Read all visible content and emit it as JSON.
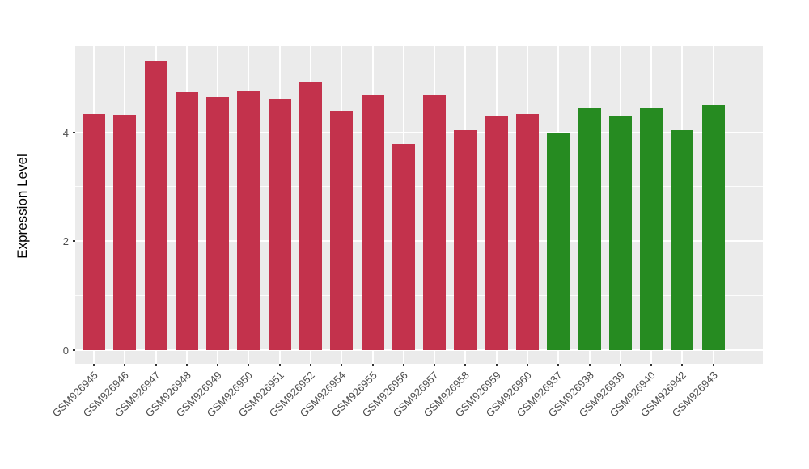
{
  "chart_data": {
    "type": "bar",
    "title": "",
    "xlabel": "",
    "ylabel": "Expression Level",
    "categories": [
      "GSM926945",
      "GSM926946",
      "GSM926947",
      "GSM926948",
      "GSM926949",
      "GSM926950",
      "GSM926951",
      "GSM926952",
      "GSM926954",
      "GSM926955",
      "GSM926956",
      "GSM926957",
      "GSM926958",
      "GSM926959",
      "GSM926960",
      "GSM926937",
      "GSM926938",
      "GSM926939",
      "GSM926940",
      "GSM926942",
      "GSM926943"
    ],
    "values": [
      4.33,
      4.32,
      5.32,
      4.74,
      4.64,
      4.75,
      4.61,
      4.91,
      4.4,
      4.67,
      3.79,
      4.67,
      4.03,
      4.3,
      4.34,
      4.0,
      4.44,
      4.31,
      4.44,
      4.03,
      4.5
    ],
    "bar_groups": [
      "red",
      "red",
      "red",
      "red",
      "red",
      "red",
      "red",
      "red",
      "red",
      "red",
      "red",
      "red",
      "red",
      "red",
      "red",
      "green",
      "green",
      "green",
      "green",
      "green",
      "green"
    ],
    "group_colors": {
      "red": "#C3324C",
      "green": "#268B21"
    },
    "ytick_labels": [
      "0",
      "2",
      "4"
    ],
    "yticks": [
      0,
      2,
      4
    ],
    "yticks_minor": [
      1,
      3,
      5
    ],
    "ylim": [
      -0.25,
      5.58
    ],
    "grid": "on",
    "legend": "none",
    "panel_background": "#EBEBEB",
    "gridline_color": "#FFFFFF",
    "tick_color": "#333333",
    "axis_text_color": "#4D4D4D"
  }
}
